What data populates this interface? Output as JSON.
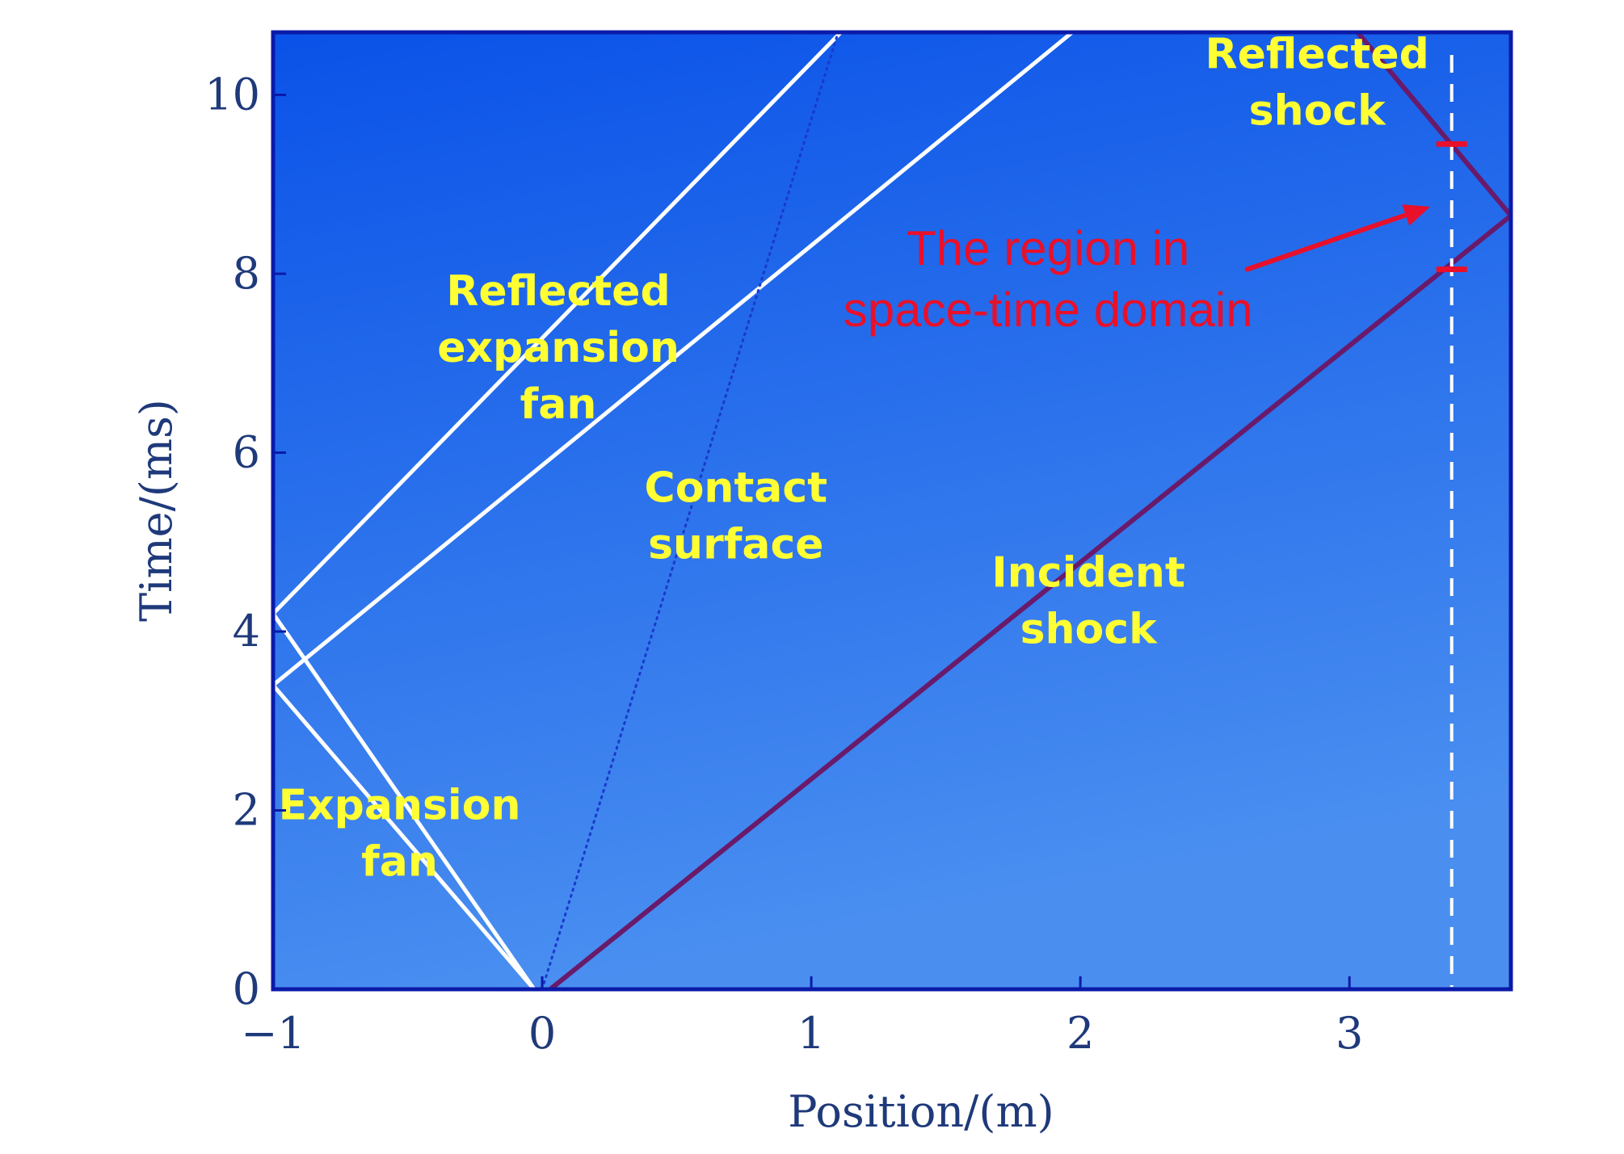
{
  "chart_data": {
    "type": "line",
    "title": "",
    "xlabel": "Position/(m)",
    "ylabel": "Time/(ms)",
    "xlim": [
      -1.0,
      3.6
    ],
    "ylim": [
      0,
      10.7
    ],
    "xticks": [
      -1,
      0,
      1,
      2,
      3
    ],
    "xtick_labels": [
      "−1",
      "0",
      "1",
      "2",
      "3"
    ],
    "yticks": [
      0,
      2,
      4,
      6,
      8,
      10
    ],
    "ytick_labels": [
      "0",
      "2",
      "4",
      "6",
      "8",
      "10"
    ],
    "colors": {
      "plot_bg_top": "#0a52e8",
      "plot_bg_bottom": "#4a8ff0",
      "frame": "#0b1aa8",
      "white_wave": "#ffffff",
      "shock": "#6a1a6a",
      "contact": "#1a3acc",
      "marker": "#e8102a",
      "annotation": "#ffff33"
    },
    "series": [
      {
        "style": "white",
        "points": [
          [
            -0.03,
            0.0
          ],
          [
            -1.0,
            4.2
          ]
        ]
      },
      {
        "style": "white",
        "points": [
          [
            -0.03,
            0.0
          ],
          [
            -1.0,
            3.4
          ]
        ]
      },
      {
        "style": "white",
        "points": [
          [
            -1.0,
            4.2
          ],
          [
            1.11,
            10.7
          ]
        ]
      },
      {
        "style": "white",
        "points": [
          [
            -1.0,
            3.4
          ],
          [
            1.97,
            10.7
          ]
        ]
      },
      {
        "style": "contact",
        "points": [
          [
            0.0,
            0.0
          ],
          [
            1.1,
            10.7
          ]
        ]
      },
      {
        "style": "shock",
        "points": [
          [
            0.03,
            0.0
          ],
          [
            3.6,
            8.65
          ]
        ]
      },
      {
        "style": "shock",
        "points": [
          [
            3.6,
            8.65
          ],
          [
            3.03,
            10.7
          ]
        ]
      }
    ],
    "vertical_dashed_x": 3.38,
    "markers_y": [
      9.45,
      8.05
    ],
    "annotations": [
      {
        "lines": [
          "Expansion",
          "fan"
        ],
        "x": -0.53,
        "y": 1.9,
        "color": "yellow"
      },
      {
        "lines": [
          "Reflected",
          "expansion",
          "fan"
        ],
        "x": 0.06,
        "y": 7.65,
        "color": "yellow"
      },
      {
        "lines": [
          "Contact",
          "surface"
        ],
        "x": 0.72,
        "y": 5.45,
        "color": "yellow"
      },
      {
        "lines": [
          "Incident",
          "shock"
        ],
        "x": 2.03,
        "y": 4.5,
        "color": "yellow"
      },
      {
        "lines": [
          "Reflected",
          "shock"
        ],
        "x": 2.88,
        "y": 10.3,
        "color": "yellow"
      },
      {
        "lines": [
          "The region in",
          "space-time domain"
        ],
        "x": 1.88,
        "y": 8.1,
        "color": "red"
      }
    ],
    "arrow": {
      "from": [
        2.62,
        8.05
      ],
      "to": [
        3.3,
        8.75
      ]
    }
  }
}
